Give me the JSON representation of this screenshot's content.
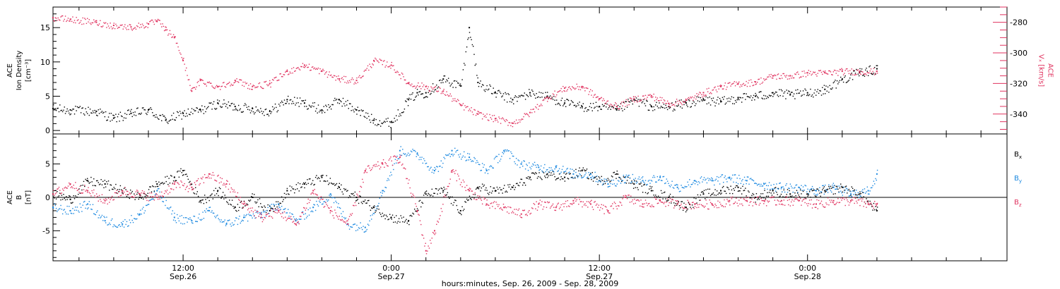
{
  "chart_data": {
    "type": "scatter",
    "x_axis": {
      "label": "hours:minutes, Sep. 26, 2009 - Sep. 28, 2009",
      "tick_labels": [
        {
          "hour": 12,
          "time": "12:00",
          "date": "Sep.26"
        },
        {
          "hour": 24,
          "time": "0:00",
          "date": "Sep.27"
        },
        {
          "hour": 36,
          "time": "12:00",
          "date": "Sep.27"
        },
        {
          "hour": 48,
          "time": "0:00",
          "date": "Sep.28"
        }
      ],
      "range_hours": [
        4.5,
        59.5
      ]
    },
    "panels": [
      {
        "id": "top",
        "left_axis": {
          "label_lines": [
            "ACE",
            "Ion Density",
            "[cm⁻³]"
          ],
          "range": [
            -0.5,
            18
          ],
          "ticks": [
            0,
            5,
            10,
            15
          ]
        },
        "right_axis": {
          "label_lines": [
            "ACE",
            "Vₓ [km/s]"
          ],
          "range": [
            -353,
            -270
          ],
          "ticks": [
            -340,
            -320,
            -300,
            -280
          ],
          "color": "#e0325f"
        },
        "series": [
          {
            "name": "",
            "color": "#000000",
            "axis": "left",
            "x": [
              4.5,
              5.5,
              7,
              8,
              9,
              10,
              11,
              12,
              13,
              14,
              15,
              16,
              17,
              18,
              19,
              20,
              21,
              22,
              23,
              24,
              25,
              25.5,
              26,
              27,
              28,
              28.5,
              29,
              30,
              31,
              32,
              33,
              34,
              35,
              36,
              37,
              38,
              39,
              40,
              41,
              42,
              43,
              44,
              45,
              46,
              47,
              48,
              49,
              50,
              51,
              52
            ],
            "y": [
              3.2,
              3.0,
              2.8,
              1.8,
              2.5,
              3.0,
              1.5,
              2.5,
              3.0,
              4.0,
              3.5,
              3.2,
              2.8,
              4.5,
              4.0,
              3.0,
              4.5,
              3.0,
              1.5,
              1.2,
              4.5,
              5.5,
              5.5,
              7.5,
              6.5,
              15.0,
              7.0,
              5.5,
              4.5,
              5.5,
              5.0,
              4.0,
              3.5,
              3.5,
              3.0,
              4.5,
              3.5,
              3.5,
              4.0,
              4.5,
              4.2,
              4.8,
              5.0,
              5.5,
              5.2,
              5.5,
              6.0,
              7.5,
              8.5,
              9.0
            ]
          },
          {
            "name": "",
            "color": "#e0325f",
            "axis": "right",
            "x": [
              4.5,
              5.5,
              7,
              8,
              9,
              10,
              10.5,
              11,
              11.5,
              12,
              12.5,
              13,
              14,
              15,
              16,
              17,
              18,
              19,
              20,
              21,
              22,
              23,
              24,
              25,
              26,
              27,
              28,
              29,
              30,
              31,
              32,
              33,
              34,
              35,
              36,
              37,
              38,
              39,
              40,
              41,
              42,
              43,
              44,
              45,
              46,
              47,
              48,
              49,
              50,
              51,
              52
            ],
            "y": [
              -277,
              -278,
              -280,
              -282,
              -283,
              -281,
              -279,
              -285,
              -290,
              -305,
              -325,
              -318,
              -322,
              -318,
              -322,
              -320,
              -312,
              -308,
              -312,
              -317,
              -318,
              -305,
              -308,
              -320,
              -322,
              -325,
              -334,
              -340,
              -343,
              -346,
              -339,
              -329,
              -323,
              -322,
              -330,
              -335,
              -330,
              -328,
              -333,
              -331,
              -326,
              -322,
              -320,
              -319,
              -315,
              -315,
              -313,
              -313,
              -312,
              -312,
              -312
            ]
          }
        ]
      },
      {
        "id": "bottom",
        "left_axis": {
          "label_lines": [
            "ACE",
            "B",
            "[nT]"
          ],
          "range": [
            -9.5,
            9.5
          ],
          "ticks": [
            -5,
            0,
            5
          ]
        },
        "series": [
          {
            "name": "Bₓ",
            "color": "#000000",
            "x": [
              4.5,
              5.5,
              6.5,
              7.5,
              8.5,
              9.5,
              10.5,
              11.5,
              12,
              13,
              14,
              15,
              16,
              17,
              18,
              19,
              20,
              21,
              22,
              23,
              24,
              25,
              26,
              27,
              28,
              29,
              30,
              31,
              32,
              33,
              34,
              35,
              36,
              37,
              38,
              39,
              40,
              41,
              42,
              43,
              44,
              45,
              46,
              47,
              48,
              49,
              50,
              51,
              52
            ],
            "y": [
              0.5,
              -0.3,
              2.5,
              2.0,
              1.0,
              0.0,
              2.0,
              3.0,
              4.0,
              -0.5,
              1.0,
              -1.5,
              0.0,
              -2.0,
              1.0,
              2.0,
              3.0,
              1.5,
              0.0,
              -1.5,
              -3.0,
              -3.5,
              0.5,
              1.0,
              -2.0,
              1.5,
              1.0,
              1.5,
              3.0,
              3.5,
              3.0,
              4.0,
              2.5,
              3.5,
              2.0,
              1.0,
              0.0,
              -1.5,
              0.5,
              1.0,
              1.5,
              0.0,
              1.0,
              0.5,
              0.5,
              1.0,
              1.5,
              0.5,
              -2.0
            ]
          },
          {
            "name": "Bᵧ",
            "color": "#1a88e0",
            "x": [
              4.5,
              5.5,
              6.5,
              7.5,
              8.5,
              9.5,
              10.5,
              11.5,
              12.5,
              13.5,
              14.5,
              15.5,
              16.5,
              17.5,
              18.5,
              19.5,
              20.5,
              21.5,
              22.5,
              23.5,
              24.5,
              25.5,
              26.5,
              27.5,
              28.5,
              29.5,
              30.5,
              31.5,
              32.5,
              33.5,
              34.5,
              35.5,
              36.5,
              37.5,
              38.5,
              39.5,
              40.5,
              41.5,
              42.5,
              43.5,
              44.5,
              45.5,
              46.5,
              47.5,
              48.5,
              49.5,
              50.5,
              51.5,
              52
            ],
            "y": [
              -1.5,
              -2.0,
              -1.0,
              -3.5,
              -4.0,
              -2.5,
              1.0,
              -3.0,
              -3.5,
              -2.0,
              -4.0,
              -3.0,
              -2.5,
              -1.0,
              -3.5,
              -1.5,
              0.5,
              -4.0,
              -4.5,
              1.0,
              7.0,
              6.5,
              4.0,
              7.0,
              6.0,
              4.0,
              7.0,
              5.0,
              4.5,
              4.5,
              3.5,
              3.5,
              2.0,
              3.0,
              2.5,
              3.0,
              1.5,
              2.5,
              2.5,
              3.0,
              2.5,
              2.0,
              1.5,
              1.5,
              1.0,
              1.5,
              0.5,
              1.0,
              3.5
            ]
          },
          {
            "name": "B_z",
            "color": "#e0325f",
            "x": [
              4.5,
              5.5,
              6.5,
              7.5,
              8.5,
              9.5,
              10.5,
              11.5,
              12.5,
              13.5,
              14.5,
              15.5,
              16.5,
              17.5,
              18.5,
              19.5,
              20.5,
              21.5,
              22.5,
              23.5,
              24.5,
              25.5,
              26,
              26.5,
              27.5,
              28.5,
              29.5,
              30.5,
              31.5,
              32.5,
              33.5,
              34.5,
              35.5,
              36.5,
              37.5,
              38.5,
              39.5,
              40.5,
              41.5,
              42.5,
              43.5,
              44.5,
              45.5,
              46.5,
              47.5,
              48.5,
              49.5,
              50.5,
              51.5,
              52
            ],
            "y": [
              0.5,
              2.0,
              1.0,
              -0.5,
              1.0,
              0.5,
              0.0,
              2.0,
              1.5,
              3.5,
              2.0,
              -1.0,
              -3.0,
              -2.0,
              -4.0,
              1.0,
              -2.0,
              -4.0,
              4.0,
              5.0,
              6.0,
              -2.0,
              -8.0,
              -5.0,
              4.0,
              1.0,
              -1.0,
              -1.5,
              -2.5,
              -1.0,
              -1.5,
              -0.5,
              -1.0,
              -2.0,
              0.0,
              -1.0,
              -0.5,
              -1.0,
              -1.0,
              -1.0,
              -0.5,
              -0.5,
              -0.5,
              -0.5,
              -0.5,
              -1.0,
              -0.5,
              -0.5,
              -1.0,
              -1.0
            ]
          }
        ],
        "legend": [
          {
            "text": "B",
            "sub": "x",
            "color": "#000000"
          },
          {
            "text": "B",
            "sub": "y",
            "color": "#1a88e0"
          },
          {
            "text": "B",
            "sub": "z",
            "color": "#e0325f"
          }
        ]
      }
    ]
  }
}
